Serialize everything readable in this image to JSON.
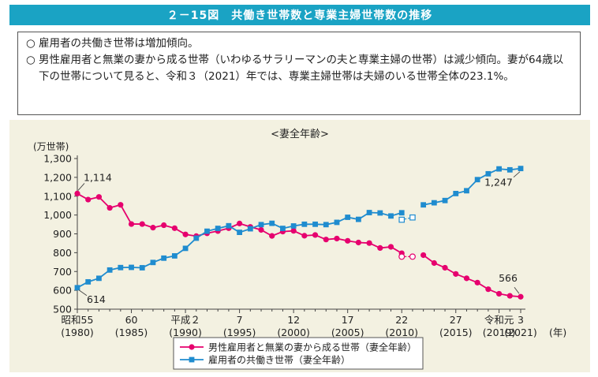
{
  "header": {
    "title": "２－15図　共働き世帯数と専業主婦世帯数の推移"
  },
  "summary": [
    {
      "mark": "○",
      "text": "雇用者の共働き世帯は増加傾向。"
    },
    {
      "mark": "○",
      "text": "男性雇用者と無業の妻から成る世帯（いわゆるサラリーマンの夫と専業主婦の世帯）は減少傾向。妻が64歳以下の世帯について見ると、令和３（2021）年では、専業主婦世帯は夫婦のいる世帯全体の23.1%。"
    }
  ],
  "chart_data": {
    "type": "line",
    "subtitle": "<妻全年齢>",
    "ylabel": "(万世帯)",
    "xlabel": "(年)",
    "ylim": [
      500,
      1300
    ],
    "yticks": [
      500,
      600,
      700,
      800,
      900,
      1000,
      1100,
      1200,
      1300
    ],
    "ytick_labels": [
      "500",
      "600",
      "700",
      "800",
      "900",
      "1,000",
      "1,100",
      "1,200",
      "1,300"
    ],
    "x_range": [
      1980,
      2021
    ],
    "xticks": [
      {
        "x": 1980,
        "line1": "昭和55",
        "line2": "(1980)"
      },
      {
        "x": 1985,
        "line1": "60",
        "line2": "(1985)"
      },
      {
        "x": 1990,
        "line1": "平成２",
        "line2": "(1990)"
      },
      {
        "x": 1995,
        "line1": "7",
        "line2": "(1995)"
      },
      {
        "x": 2000,
        "line1": "12",
        "line2": "(2000)"
      },
      {
        "x": 2005,
        "line1": "17",
        "line2": "(2005)"
      },
      {
        "x": 2010,
        "line1": "22",
        "line2": "(2010)"
      },
      {
        "x": 2015,
        "line1": "27",
        "line2": "(2015)"
      },
      {
        "x": 2019,
        "line1": "令和元",
        "line2": "(2019)"
      },
      {
        "x": 2021,
        "line1": "3",
        "line2": "(2021)"
      }
    ],
    "series": [
      {
        "name": "男性雇用者と無業の妻から成る世帯（妻全年齢）",
        "color": "#e6006e",
        "marker": "circle",
        "segments": [
          {
            "x": [
              1980,
              1981,
              1982,
              1983,
              1984,
              1985,
              1986,
              1987,
              1988,
              1989,
              1990,
              1991,
              1992,
              1993,
              1994,
              1995,
              1996,
              1997,
              1998,
              1999,
              2000,
              2001,
              2002,
              2003,
              2004,
              2005,
              2006,
              2007,
              2008,
              2009,
              2010
            ],
            "y": [
              1114,
              1082,
              1096,
              1038,
              1054,
              952,
              952,
              933,
              946,
              930,
              897,
              888,
              903,
              915,
              930,
              955,
              937,
              921,
              889,
              912,
              916,
              890,
              894,
              870,
              875,
              863,
              854,
              851,
              825,
              831,
              797
            ]
          },
          {
            "x": [
              2012,
              2013,
              2014,
              2015,
              2016,
              2017,
              2018,
              2019,
              2020,
              2021
            ],
            "y": [
              787,
              745,
              720,
              687,
              664,
              641,
              606,
              582,
              571,
              566
            ]
          }
        ],
        "hollow": {
          "x": [
            2010,
            2011
          ],
          "y": [
            779,
            779
          ]
        }
      },
      {
        "name": "雇用者の共働き世帯（妻全年齢）",
        "color": "#1f8ccf",
        "marker": "square",
        "segments": [
          {
            "x": [
              1980,
              1981,
              1982,
              1983,
              1984,
              1985,
              1986,
              1987,
              1988,
              1989,
              1990,
              1991,
              1992,
              1993,
              1994,
              1995,
              1996,
              1997,
              1998,
              1999,
              2000,
              2001,
              2002,
              2003,
              2004,
              2005,
              2006,
              2007,
              2008,
              2009,
              2010
            ],
            "y": [
              614,
              645,
              664,
              708,
              721,
              722,
              720,
              748,
              771,
              783,
              823,
              877,
              914,
              929,
              943,
              908,
              927,
              949,
              956,
              929,
              942,
              951,
              951,
              949,
              961,
              988,
              977,
              1013,
              1011,
              995,
              1012
            ]
          },
          {
            "x": [
              2012,
              2013,
              2014,
              2015,
              2016,
              2017,
              2018,
              2019,
              2020,
              2021
            ],
            "y": [
              1054,
              1065,
              1077,
              1114,
              1129,
              1188,
              1219,
              1245,
              1240,
              1247
            ]
          }
        ],
        "hollow": {
          "x": [
            2010,
            2011
          ],
          "y": [
            975,
            987
          ]
        }
      }
    ],
    "annotations": [
      {
        "label": "1,114",
        "x": 1980,
        "y": 1114,
        "series": 0
      },
      {
        "label": "614",
        "x": 1980,
        "y": 614,
        "series": 1
      },
      {
        "label": "1,247",
        "x": 2021,
        "y": 1247,
        "series": 1
      },
      {
        "label": "566",
        "x": 2021,
        "y": 566,
        "series": 0
      }
    ],
    "legend_position": "bottom-center",
    "grid": false
  }
}
